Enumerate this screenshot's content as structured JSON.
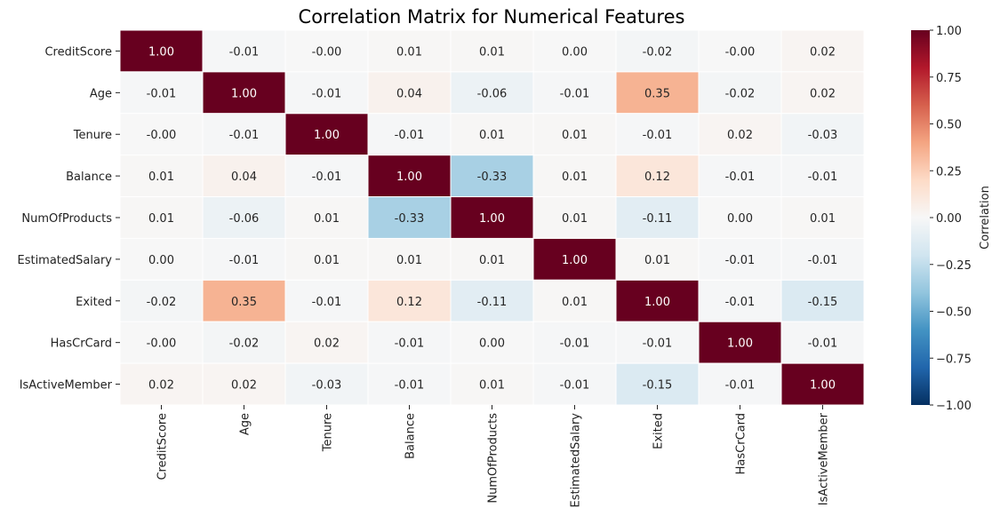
{
  "chart_data": {
    "type": "heatmap",
    "title": "Correlation Matrix for Numerical Features",
    "xlabel": "",
    "ylabel": "",
    "x_labels": [
      "CreditScore",
      "Age",
      "Tenure",
      "Balance",
      "NumOfProducts",
      "EstimatedSalary",
      "Exited",
      "HasCrCard",
      "IsActiveMember"
    ],
    "y_labels": [
      "CreditScore",
      "Age",
      "Tenure",
      "Balance",
      "NumOfProducts",
      "EstimatedSalary",
      "Exited",
      "HasCrCard",
      "IsActiveMember"
    ],
    "values": [
      [
        1.0,
        -0.01,
        -0.0,
        0.01,
        0.01,
        0.0,
        -0.02,
        -0.0,
        0.02
      ],
      [
        -0.01,
        1.0,
        -0.01,
        0.04,
        -0.06,
        -0.01,
        0.35,
        -0.02,
        0.02
      ],
      [
        -0.0,
        -0.01,
        1.0,
        -0.01,
        0.01,
        0.01,
        -0.01,
        0.02,
        -0.03
      ],
      [
        0.01,
        0.04,
        -0.01,
        1.0,
        -0.33,
        0.01,
        0.12,
        -0.01,
        -0.01
      ],
      [
        0.01,
        -0.06,
        0.01,
        -0.33,
        1.0,
        0.01,
        -0.11,
        0.0,
        0.01
      ],
      [
        0.0,
        -0.01,
        0.01,
        0.01,
        0.01,
        1.0,
        0.01,
        -0.01,
        -0.01
      ],
      [
        -0.02,
        0.35,
        -0.01,
        0.12,
        -0.11,
        0.01,
        1.0,
        -0.01,
        -0.15
      ],
      [
        -0.0,
        -0.02,
        0.02,
        -0.01,
        0.0,
        -0.01,
        -0.01,
        1.0,
        -0.01
      ],
      [
        0.02,
        0.02,
        -0.03,
        -0.01,
        0.01,
        -0.01,
        -0.15,
        -0.01,
        1.0
      ]
    ],
    "value_labels": [
      [
        "1.00",
        "-0.01",
        "-0.00",
        "0.01",
        "0.01",
        "0.00",
        "-0.02",
        "-0.00",
        "0.02"
      ],
      [
        "-0.01",
        "1.00",
        "-0.01",
        "0.04",
        "-0.06",
        "-0.01",
        "0.35",
        "-0.02",
        "0.02"
      ],
      [
        "-0.00",
        "-0.01",
        "1.00",
        "-0.01",
        "0.01",
        "0.01",
        "-0.01",
        "0.02",
        "-0.03"
      ],
      [
        "0.01",
        "0.04",
        "-0.01",
        "1.00",
        "-0.33",
        "0.01",
        "0.12",
        "-0.01",
        "-0.01"
      ],
      [
        "0.01",
        "-0.06",
        "0.01",
        "-0.33",
        "1.00",
        "0.01",
        "-0.11",
        "0.00",
        "0.01"
      ],
      [
        "0.00",
        "-0.01",
        "0.01",
        "0.01",
        "0.01",
        "1.00",
        "0.01",
        "-0.01",
        "-0.01"
      ],
      [
        "-0.02",
        "0.35",
        "-0.01",
        "0.12",
        "-0.11",
        "0.01",
        "1.00",
        "-0.01",
        "-0.15"
      ],
      [
        "-0.00",
        "-0.02",
        "0.02",
        "-0.01",
        "0.00",
        "-0.01",
        "-0.01",
        "1.00",
        "-0.01"
      ],
      [
        "0.02",
        "0.02",
        "-0.03",
        "-0.01",
        "0.01",
        "-0.01",
        "-0.15",
        "-0.01",
        "1.00"
      ]
    ],
    "colormap": "RdBu_r",
    "vmin": -1.0,
    "vmax": 1.0,
    "colorbar": {
      "label": "Correlation",
      "ticks": [
        1.0,
        0.75,
        0.5,
        0.25,
        0.0,
        -0.25,
        -0.5,
        -0.75,
        -1.0
      ],
      "tick_labels": [
        "1.00",
        "0.75",
        "0.50",
        "0.25",
        "0.00",
        "−0.25",
        "−0.50",
        "−0.75",
        "−1.00"
      ],
      "position": "right"
    },
    "grid": false
  }
}
